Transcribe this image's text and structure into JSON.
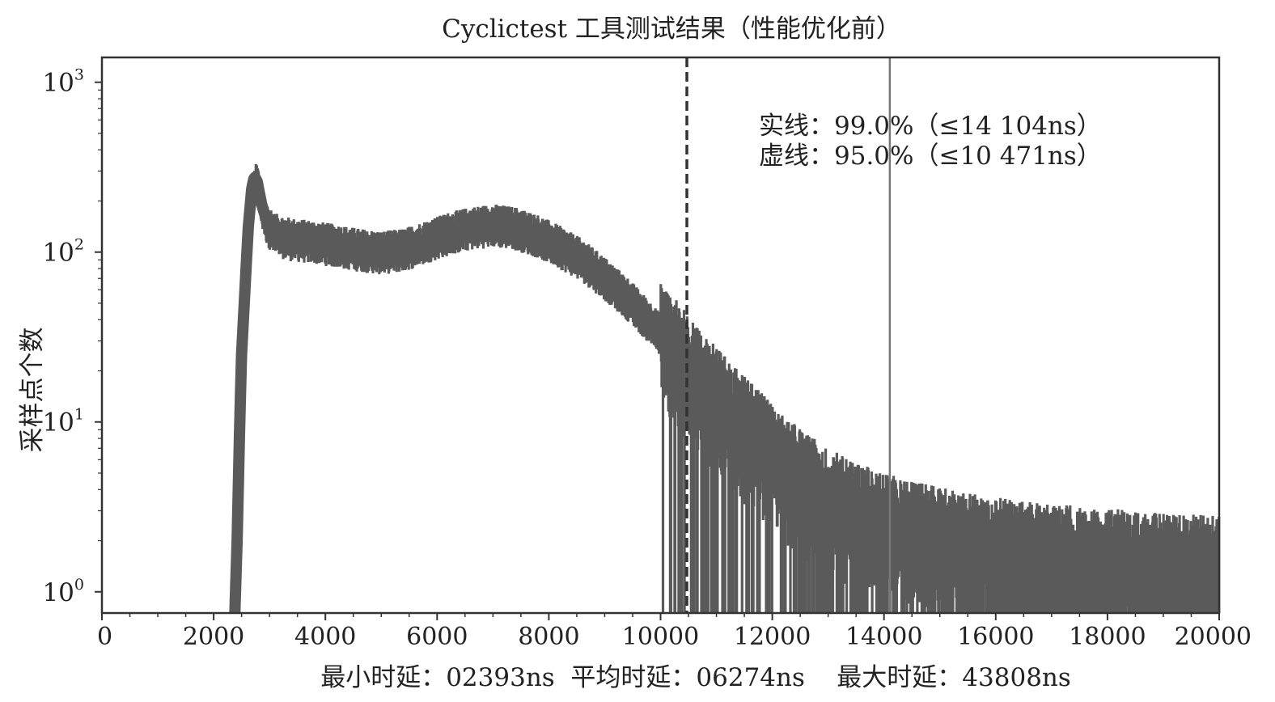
{
  "chart_data": {
    "type": "line",
    "title": "Cyclictest 工具测试结果（性能优化前）",
    "ylabel": "采样点个数",
    "xlabel": "",
    "xlim": [
      0,
      20000
    ],
    "ylim": [
      0.75,
      1400
    ],
    "yscale": "log",
    "x_ticks": [
      "0",
      "2000",
      "4000",
      "6000",
      "8000",
      "10000",
      "12000",
      "14000",
      "16000",
      "18000",
      "20000"
    ],
    "y_ticks": [
      {
        "value": 1,
        "base": "10",
        "exp": "0"
      },
      {
        "value": 10,
        "base": "10",
        "exp": "1"
      },
      {
        "value": 100,
        "base": "10",
        "exp": "2"
      },
      {
        "value": 1000,
        "base": "10",
        "exp": "3"
      }
    ],
    "grid": false,
    "series_color": "#5a5a5a",
    "series": [
      {
        "envelope_points": [
          [
            2380,
            0.75
          ],
          [
            2420,
            2
          ],
          [
            2460,
            8
          ],
          [
            2500,
            25
          ],
          [
            2560,
            60
          ],
          [
            2620,
            140
          ],
          [
            2680,
            235
          ],
          [
            2730,
            280
          ],
          [
            2780,
            260
          ],
          [
            2860,
            190
          ],
          [
            2960,
            150
          ],
          [
            3100,
            130
          ],
          [
            3400,
            122
          ],
          [
            3800,
            118
          ],
          [
            4200,
            112
          ],
          [
            4600,
            106
          ],
          [
            5000,
            102
          ],
          [
            5400,
            106
          ],
          [
            5800,
            118
          ],
          [
            6200,
            132
          ],
          [
            6600,
            142
          ],
          [
            7000,
            148
          ],
          [
            7400,
            142
          ],
          [
            7800,
            128
          ],
          [
            8200,
            110
          ],
          [
            8600,
            92
          ],
          [
            9000,
            72
          ],
          [
            9400,
            55
          ],
          [
            9800,
            40
          ],
          [
            10200,
            28
          ],
          [
            10600,
            20
          ],
          [
            11000,
            14
          ],
          [
            11400,
            10
          ],
          [
            11800,
            7.5
          ],
          [
            12200,
            5.5
          ],
          [
            12600,
            4.3
          ],
          [
            13000,
            3.5
          ],
          [
            13500,
            2.9
          ],
          [
            14000,
            2.5
          ],
          [
            14600,
            2.2
          ],
          [
            15200,
            2.0
          ],
          [
            16000,
            1.8
          ],
          [
            17000,
            1.65
          ],
          [
            18000,
            1.55
          ],
          [
            19000,
            1.45
          ],
          [
            20000,
            1.4
          ]
        ]
      }
    ],
    "vlines": [
      {
        "x": 10471,
        "style": "dashed",
        "label": "虚线"
      },
      {
        "x": 14104,
        "style": "solid",
        "label": "实线"
      }
    ],
    "annotations": [
      "实线：99.0%（≤14 104ns）",
      "虚线：95.0%（≤10 471ns）"
    ],
    "footer": "最小时延：02393ns  平均时延：06274ns    最大时延：43808ns"
  }
}
